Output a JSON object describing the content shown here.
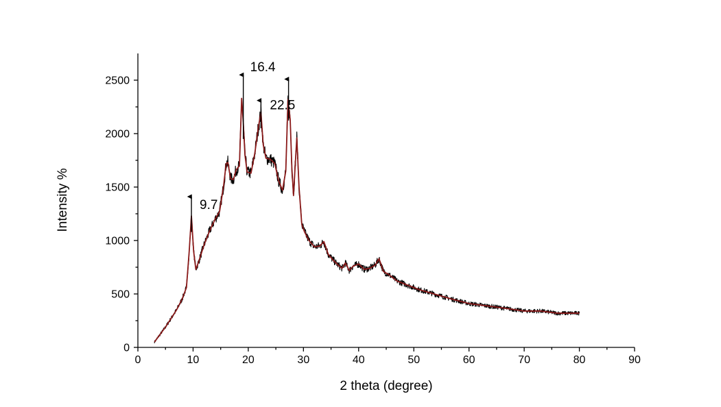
{
  "chart_data": {
    "type": "line",
    "xlabel": "2 theta (degree)",
    "ylabel": "Intensity %",
    "xlim": [
      0,
      90
    ],
    "ylim": [
      0,
      2750
    ],
    "x_ticks": [
      0,
      10,
      20,
      30,
      40,
      50,
      60,
      70,
      80,
      90
    ],
    "y_ticks": [
      0,
      500,
      1000,
      1500,
      2000,
      2500
    ],
    "grid": false,
    "legend": "none",
    "series": [
      {
        "color": "#8b1a1a",
        "noise_color": "#000000",
        "x": [
          3,
          4,
          5,
          6,
          7,
          8,
          8.8,
          9.3,
          9.7,
          10.1,
          10.5,
          11,
          12,
          13,
          14,
          14.8,
          15.5,
          16,
          16.3,
          16.8,
          17.3,
          17.8,
          18.4,
          18.8,
          19.1,
          19.4,
          19.8,
          20.5,
          21.2,
          21.8,
          22.3,
          22.7,
          23.2,
          24,
          24.8,
          25.5,
          26.2,
          26.8,
          27.2,
          27.6,
          27.9,
          28.2,
          28.5,
          28.8,
          29.2,
          29.7,
          30.2,
          31,
          32,
          33,
          33.7,
          34.5,
          35.5,
          36.3,
          37,
          37.6,
          38.3,
          39,
          40,
          41,
          42,
          43,
          43.7,
          44.5,
          45.5,
          47,
          49,
          51,
          53,
          55,
          57,
          60,
          63,
          66,
          70,
          73,
          76,
          80
        ],
        "y": [
          50,
          120,
          190,
          270,
          350,
          450,
          560,
          900,
          1230,
          900,
          730,
          800,
          960,
          1090,
          1200,
          1270,
          1500,
          1720,
          1730,
          1580,
          1570,
          1660,
          1700,
          2330,
          2100,
          1800,
          1640,
          1630,
          1820,
          2050,
          2200,
          1900,
          1770,
          1760,
          1720,
          1560,
          1470,
          1650,
          2320,
          2130,
          1680,
          1420,
          1700,
          1960,
          1500,
          1150,
          1080,
          1000,
          940,
          950,
          990,
          870,
          810,
          770,
          740,
          790,
          720,
          760,
          780,
          730,
          740,
          770,
          830,
          710,
          680,
          620,
          580,
          540,
          510,
          480,
          450,
          410,
          390,
          370,
          340,
          340,
          320,
          320
        ]
      }
    ],
    "annotations": [
      {
        "text": "9.7",
        "x": 9.7,
        "arrow_to_y": 1410
      },
      {
        "text": "16.4",
        "x": 19.1,
        "arrow_to_y": 2550
      },
      {
        "text": "22.5",
        "x": 22.3,
        "arrow_to_y": 2310
      },
      {
        "text": "",
        "x": 27.3,
        "arrow_to_y": 2510
      }
    ]
  }
}
